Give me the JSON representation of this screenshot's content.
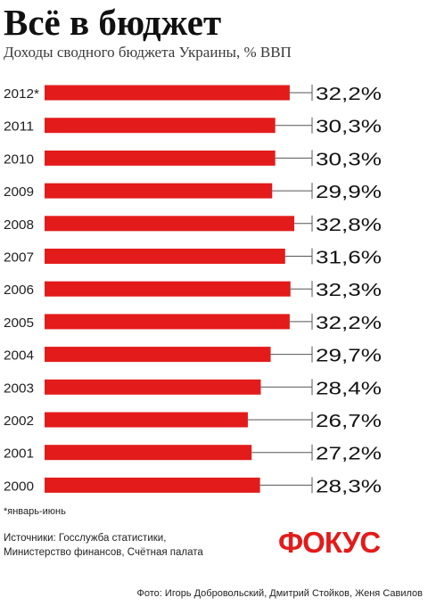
{
  "header": {
    "title": "Всё в бюджет",
    "subtitle": "Доходы сводного бюджета Украины, % ВВП"
  },
  "chart_data": {
    "type": "bar",
    "orientation": "horizontal",
    "categories": [
      "2012*",
      "2011",
      "2010",
      "2009",
      "2008",
      "2007",
      "2006",
      "2005",
      "2004",
      "2003",
      "2002",
      "2001",
      "2000"
    ],
    "values": [
      32.2,
      30.3,
      30.3,
      29.9,
      32.8,
      31.6,
      32.3,
      32.2,
      29.7,
      28.4,
      26.7,
      27.2,
      28.3
    ],
    "value_labels": [
      "32,2%",
      "30,3%",
      "30,3%",
      "29,9%",
      "32,8%",
      "31,6%",
      "32,3%",
      "32,2%",
      "29,7%",
      "28,4%",
      "26,7%",
      "27,2%",
      "28,3%"
    ],
    "title": "Всё в бюджет",
    "subtitle": "Доходы сводного бюджета Украины, % ВВП",
    "xlabel": "",
    "ylabel": "",
    "xlim": [
      0,
      33.5
    ],
    "grid": false,
    "bar_color": "#e31b1b"
  },
  "notes": {
    "footnote": "*январь-июнь",
    "sources_line1": "Источники: Госслужба статистики,",
    "sources_line2": "Министерство финансов, Счётная палата"
  },
  "logo": {
    "text": "ФОКУС"
  },
  "credit": "Фото: Игорь Добровольский, Дмитрий Стойков, Женя Савилов"
}
